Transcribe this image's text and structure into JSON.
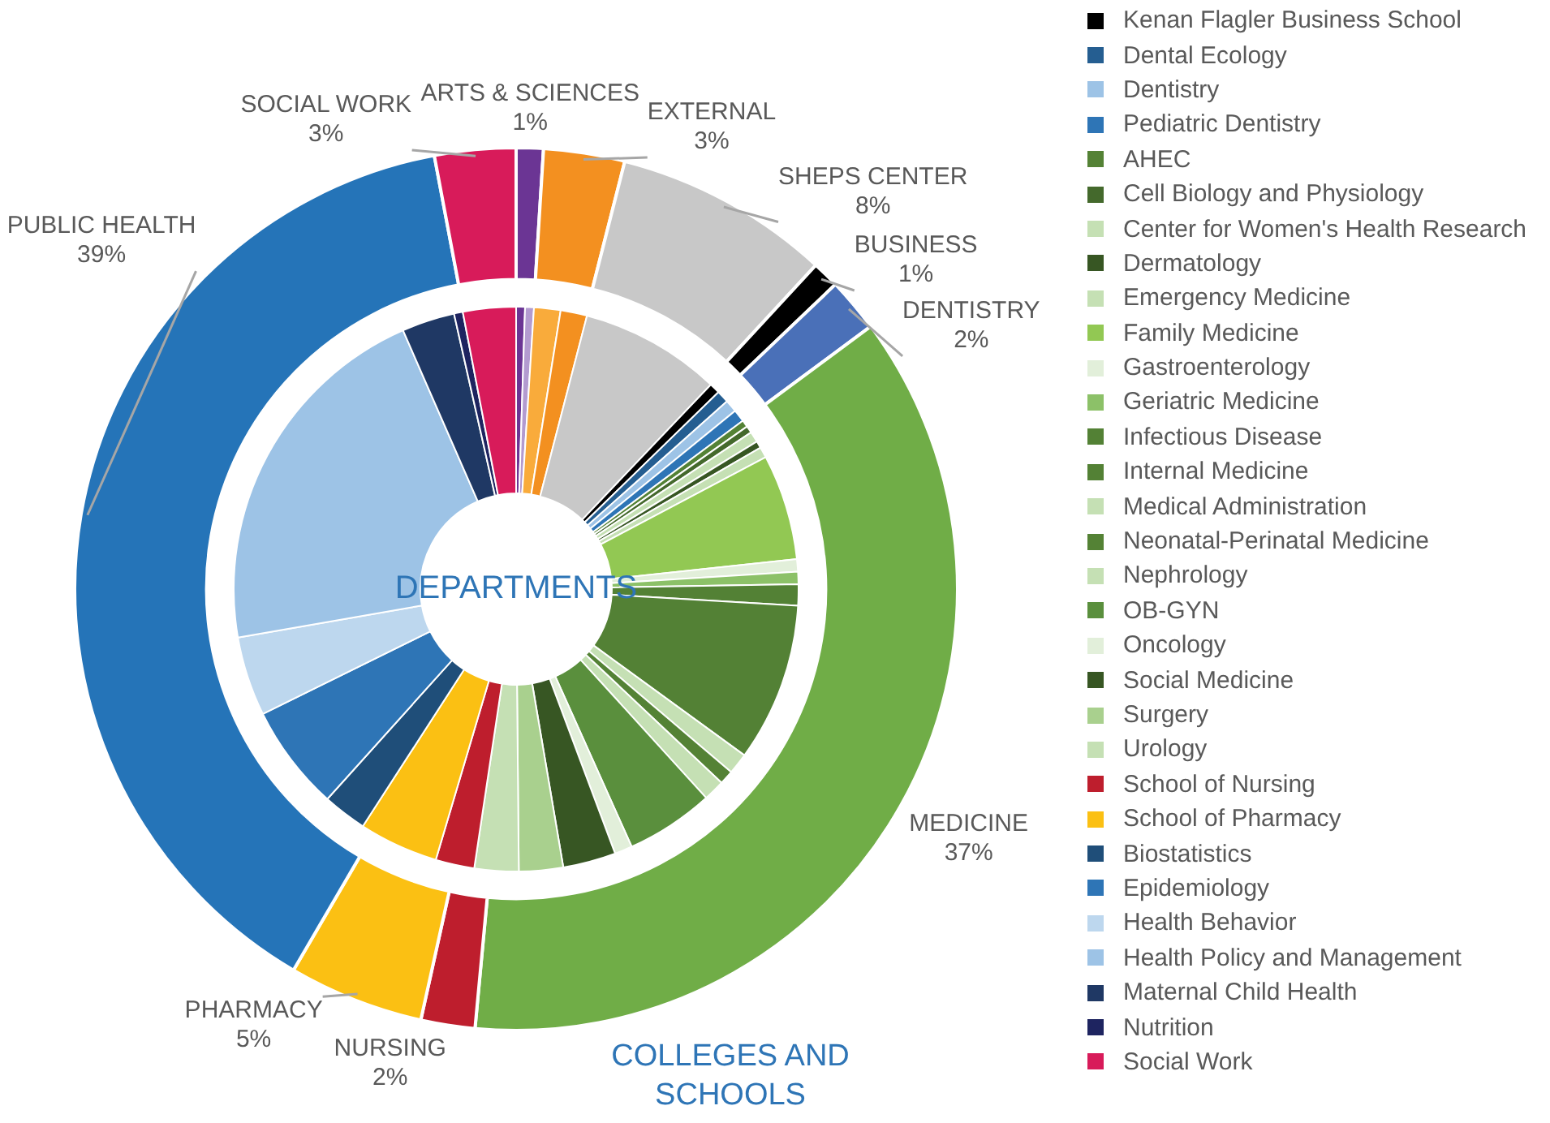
{
  "chart_data": [
    {
      "type": "donut",
      "title": "COLLEGES AND SCHOOLS",
      "categories": [
        "ARTS & SCIENCES",
        "EXTERNAL",
        "SHEPS CENTER",
        "BUSINESS",
        "DENTISTRY",
        "MEDICINE",
        "NURSING",
        "PHARMACY",
        "PUBLIC HEALTH",
        "SOCIAL WORK"
      ],
      "values": [
        1,
        3,
        8,
        1,
        2,
        37,
        2,
        5,
        39,
        3
      ],
      "value_labels": [
        "1%",
        "3%",
        "8%",
        "1%",
        "2%",
        "37%",
        "2%",
        "5%",
        "39%",
        "3%"
      ],
      "colors": [
        "#6b3594",
        "#f39020",
        "#c8c8c8",
        "#000000",
        "#4a70b8",
        "#70ad47",
        "#be1e2d",
        "#fbc013",
        "#2574b8",
        "#d81b5a"
      ]
    },
    {
      "type": "donut",
      "title": "DEPARTMENTS",
      "legend": "right",
      "categories": [
        null,
        null,
        null,
        null,
        null,
        "Kenan Flagler Business School",
        "Dental Ecology",
        "Dentistry",
        "Pediatric Dentistry",
        "AHEC",
        "Cell Biology and Physiology",
        "Center for Women's Health Research",
        "Dermatology",
        "Emergency Medicine",
        "Family Medicine",
        "Gastroenterology",
        "Geriatric Medicine",
        "Infectious Disease",
        "Internal Medicine",
        "Medical Administration",
        "Neonatal-Perinatal Medicine",
        "Nephrology",
        "OB-GYN",
        "Oncology",
        "Social Medicine",
        "Surgery",
        "Urology",
        "School of Nursing",
        "School of Pharmacy",
        "Biostatistics",
        "Epidemiology",
        "Health Behavior",
        "Health Policy and Management",
        "Maternal Child Health",
        "Nutrition",
        "Social Work"
      ],
      "values": [
        0.5,
        0.5,
        1.5,
        1.5,
        8,
        0.6,
        0.7,
        0.7,
        0.7,
        0.4,
        0.4,
        0.6,
        0.4,
        0.6,
        6,
        0.7,
        0.7,
        1.2,
        9,
        1.2,
        0.8,
        1.2,
        5,
        1,
        3,
        2.5,
        2.5,
        2.2,
        4.5,
        2.5,
        6,
        4.5,
        21,
        3,
        0.5,
        3
      ],
      "colors": [
        "#6b3594",
        "#b39bd0",
        "#f9ab3b",
        "#f39020",
        "#c8c8c8",
        "#000000",
        "#255e91",
        "#9dc3e6",
        "#2e75b6",
        "#548235",
        "#44692c",
        "#c5e0b4",
        "#375623",
        "#c5e0b4",
        "#92c853",
        "#e2efda",
        "#8cc168",
        "#538135",
        "#538135",
        "#c5e0b4",
        "#548235",
        "#c5e0b4",
        "#5a8f3d",
        "#e2efda",
        "#375623",
        "#a9d08e",
        "#c5e0b4",
        "#be1e2d",
        "#fbc013",
        "#1f4e79",
        "#2e75b6",
        "#bdd7ee",
        "#9dc3e6",
        "#1f3864",
        "#1e2460",
        "#d81b5a"
      ]
    }
  ]
}
